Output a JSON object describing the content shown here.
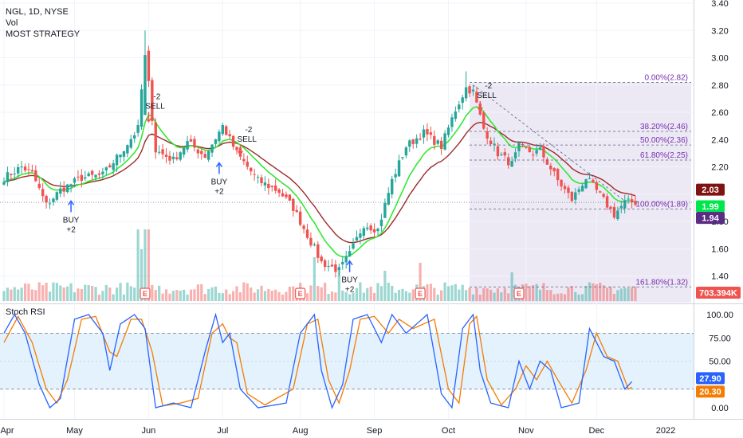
{
  "legend": {
    "symbol": "NGL, 1D, NYSE",
    "volume": "Vol",
    "strategy": "MOST STRATEGY"
  },
  "rsi_panel": {
    "title": "Stoch RSI"
  },
  "colors": {
    "up": "#26a69a",
    "down": "#ef5350",
    "most_line": "#9c2a2a",
    "ema_line": "#33e833",
    "fib_fill": "#ece9f5",
    "fib_line": "#555f80",
    "fib_label": "#7a2fb0",
    "rsi_k": "#2962ff",
    "rsi_d": "#f57c00",
    "rsi_band": "#e3f2fd",
    "signal_buy": "#2962ff",
    "signal_sell": "#131722"
  },
  "chart_data": [
    {
      "type": "candlestick",
      "title": "NGL, 1D, NYSE",
      "y_ticks": [
        "3.40",
        "3.20",
        "3.00",
        "2.80",
        "2.60",
        "2.40",
        "2.20",
        "1.80",
        "1.60",
        "1.40"
      ],
      "ylim": [
        1.25,
        3.42
      ],
      "x_ticks": [
        "Apr",
        "May",
        "Jun",
        "Jul",
        "Aug",
        "Sep",
        "Oct",
        "Nov",
        "Dec",
        "2022"
      ],
      "price_badges": [
        {
          "value": "2.03",
          "color": "#7f1212"
        },
        {
          "value": "1.99",
          "color": "#00e64d"
        },
        {
          "value": "1.94",
          "color": "#5b2c83"
        },
        {
          "value": "703.394K",
          "color": "#ef5350"
        }
      ],
      "fibonacci": [
        {
          "label": "0.00%(2.82)",
          "price": 2.82
        },
        {
          "label": "38.20%(2.46)",
          "price": 2.46
        },
        {
          "label": "50.00%(2.36)",
          "price": 2.36
        },
        {
          "label": "61.80%(2.25)",
          "price": 2.25
        },
        {
          "label": "100.00%(1.89)",
          "price": 1.89
        },
        {
          "label": "161.80%(1.32)",
          "price": 1.32
        }
      ],
      "signals": [
        {
          "type": "buy",
          "day": 19,
          "price": 2.02,
          "text": [
            "BUY",
            "+2"
          ]
        },
        {
          "type": "sell",
          "day": 41,
          "price": 2.52,
          "text": [
            "-2",
            "SELL"
          ]
        },
        {
          "type": "buy",
          "day": 61,
          "price": 2.3,
          "text": [
            "BUY",
            "+2"
          ]
        },
        {
          "type": "sell",
          "day": 67,
          "price": 2.28,
          "text": [
            "-2",
            "SELL"
          ]
        },
        {
          "type": "buy",
          "day": 98,
          "price": 1.58,
          "text": [
            "BUY",
            "+2"
          ]
        },
        {
          "type": "sell",
          "day": 135,
          "price": 2.6,
          "text": [
            "-2",
            "SELL"
          ]
        }
      ],
      "earnings_markers": [
        "E",
        "E",
        "E",
        "E"
      ],
      "price_anchors": [
        [
          0,
          2.12
        ],
        [
          5,
          2.2
        ],
        [
          8,
          2.15
        ],
        [
          12,
          1.92
        ],
        [
          16,
          2.03
        ],
        [
          22,
          2.12
        ],
        [
          28,
          2.14
        ],
        [
          33,
          2.3
        ],
        [
          38,
          2.48
        ],
        [
          40,
          3.05
        ],
        [
          43,
          2.32
        ],
        [
          48,
          2.25
        ],
        [
          52,
          2.38
        ],
        [
          57,
          2.28
        ],
        [
          62,
          2.5
        ],
        [
          66,
          2.3
        ],
        [
          72,
          2.1
        ],
        [
          78,
          2.02
        ],
        [
          82,
          1.9
        ],
        [
          86,
          1.7
        ],
        [
          90,
          1.5
        ],
        [
          95,
          1.44
        ],
        [
          98,
          1.56
        ],
        [
          102,
          1.78
        ],
        [
          106,
          1.74
        ],
        [
          110,
          2.1
        ],
        [
          114,
          2.35
        ],
        [
          119,
          2.45
        ],
        [
          124,
          2.35
        ],
        [
          128,
          2.62
        ],
        [
          131,
          2.78
        ],
        [
          133,
          2.75
        ],
        [
          136,
          2.48
        ],
        [
          140,
          2.3
        ],
        [
          144,
          2.22
        ],
        [
          146,
          2.35
        ],
        [
          150,
          2.3
        ],
        [
          152,
          2.32
        ],
        [
          157,
          2.1
        ],
        [
          161,
          1.96
        ],
        [
          165,
          2.12
        ],
        [
          169,
          1.99
        ],
        [
          173,
          1.85
        ],
        [
          176,
          1.94
        ]
      ],
      "volume_scale": "703.394K"
    },
    {
      "type": "line",
      "title": "Stoch RSI",
      "y_ticks": [
        "100.00",
        "75.00",
        "50.00",
        "25.00",
        "0.00"
      ],
      "ylim": [
        0,
        100
      ],
      "band": [
        20,
        80
      ],
      "badges": [
        {
          "value": "27.90",
          "color": "#2962ff"
        },
        {
          "value": "20.30",
          "color": "#f57c00"
        }
      ],
      "k_anchors": [
        [
          0,
          80
        ],
        [
          3,
          100
        ],
        [
          6,
          80
        ],
        [
          10,
          25
        ],
        [
          13,
          0
        ],
        [
          16,
          10
        ],
        [
          20,
          95
        ],
        [
          24,
          100
        ],
        [
          28,
          80
        ],
        [
          30,
          40
        ],
        [
          33,
          90
        ],
        [
          37,
          100
        ],
        [
          40,
          85
        ],
        [
          43,
          0
        ],
        [
          48,
          5
        ],
        [
          53,
          0
        ],
        [
          57,
          60
        ],
        [
          60,
          100
        ],
        [
          62,
          70
        ],
        [
          64,
          80
        ],
        [
          67,
          20
        ],
        [
          72,
          0
        ],
        [
          80,
          5
        ],
        [
          84,
          80
        ],
        [
          88,
          100
        ],
        [
          90,
          40
        ],
        [
          93,
          0
        ],
        [
          96,
          25
        ],
        [
          99,
          95
        ],
        [
          103,
          100
        ],
        [
          107,
          70
        ],
        [
          110,
          100
        ],
        [
          114,
          80
        ],
        [
          120,
          100
        ],
        [
          124,
          15
        ],
        [
          127,
          0
        ],
        [
          130,
          85
        ],
        [
          133,
          100
        ],
        [
          135,
          40
        ],
        [
          138,
          5
        ],
        [
          143,
          0
        ],
        [
          146,
          50
        ],
        [
          149,
          20
        ],
        [
          152,
          50
        ],
        [
          155,
          40
        ],
        [
          158,
          0
        ],
        [
          163,
          5
        ],
        [
          166,
          85
        ],
        [
          170,
          55
        ],
        [
          173,
          50
        ],
        [
          176,
          20
        ],
        [
          178,
          28
        ]
      ],
      "d_anchors": [
        [
          0,
          70
        ],
        [
          4,
          98
        ],
        [
          8,
          70
        ],
        [
          12,
          20
        ],
        [
          15,
          5
        ],
        [
          18,
          30
        ],
        [
          22,
          95
        ],
        [
          26,
          98
        ],
        [
          30,
          60
        ],
        [
          32,
          55
        ],
        [
          36,
          95
        ],
        [
          39,
          95
        ],
        [
          42,
          60
        ],
        [
          45,
          2
        ],
        [
          50,
          5
        ],
        [
          55,
          10
        ],
        [
          59,
          80
        ],
        [
          62,
          90
        ],
        [
          64,
          75
        ],
        [
          66,
          70
        ],
        [
          69,
          15
        ],
        [
          74,
          3
        ],
        [
          82,
          20
        ],
        [
          86,
          90
        ],
        [
          89,
          95
        ],
        [
          92,
          30
        ],
        [
          95,
          5
        ],
        [
          98,
          40
        ],
        [
          101,
          95
        ],
        [
          105,
          98
        ],
        [
          109,
          80
        ],
        [
          112,
          95
        ],
        [
          116,
          85
        ],
        [
          122,
          95
        ],
        [
          126,
          20
        ],
        [
          129,
          5
        ],
        [
          132,
          90
        ],
        [
          134,
          98
        ],
        [
          137,
          30
        ],
        [
          141,
          3
        ],
        [
          145,
          20
        ],
        [
          148,
          45
        ],
        [
          151,
          30
        ],
        [
          154,
          50
        ],
        [
          157,
          30
        ],
        [
          161,
          5
        ],
        [
          165,
          40
        ],
        [
          168,
          80
        ],
        [
          171,
          55
        ],
        [
          174,
          50
        ],
        [
          177,
          20
        ],
        [
          178,
          22
        ]
      ]
    }
  ]
}
